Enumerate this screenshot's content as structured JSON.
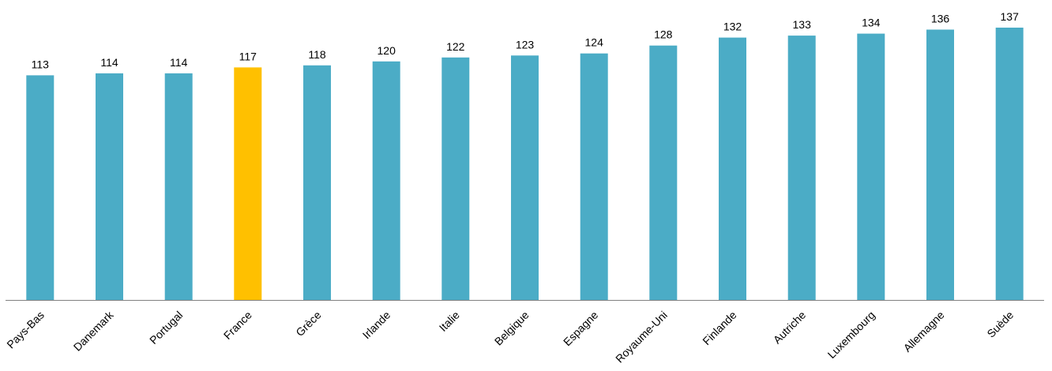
{
  "chart_data": {
    "type": "bar",
    "categories": [
      "Pays-Bas",
      "Danemark",
      "Portugal",
      "France",
      "Grèce",
      "Irlande",
      "Italie",
      "Belgique",
      "Espagne",
      "Royaume-Uni",
      "Finlande",
      "Autriche",
      "Luxembourg",
      "Allemagne",
      "Suède"
    ],
    "values": [
      113,
      114,
      114,
      117,
      118,
      120,
      122,
      123,
      124,
      128,
      132,
      133,
      134,
      136,
      137
    ],
    "highlight_category": "France",
    "colors": {
      "bar": "#4BACC6",
      "highlight": "#FFC000",
      "axis": "#808080"
    },
    "title": "",
    "xlabel": "",
    "ylabel": "",
    "ylim": [
      0,
      137
    ],
    "grid": false,
    "legend": "none",
    "data_labels": true
  }
}
